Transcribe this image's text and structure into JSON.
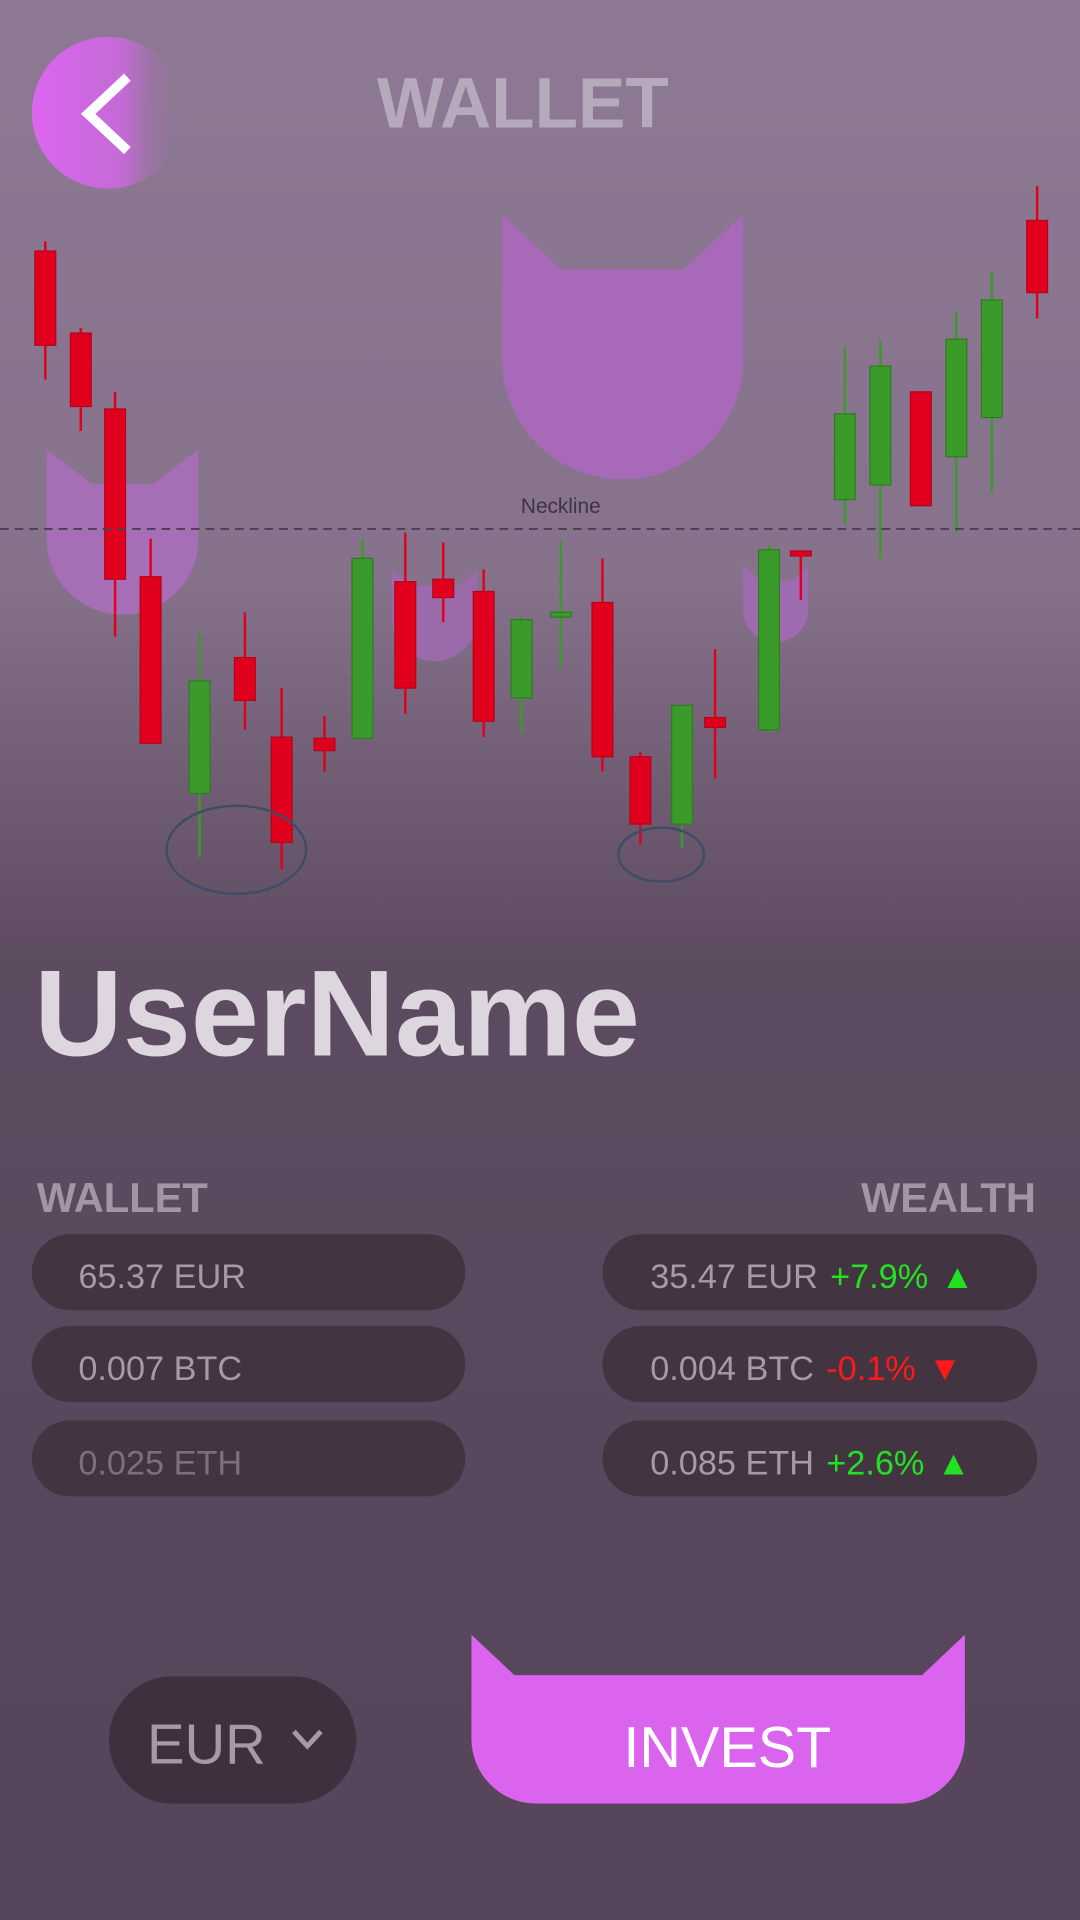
{
  "header": {
    "title": "WALLET"
  },
  "chart": {
    "annotation": "Neckline"
  },
  "user": {
    "name": "UserName"
  },
  "wallet": {
    "title": "WALLET",
    "rows": [
      "65.37 EUR",
      "0.007 BTC",
      "0.025 ETH"
    ]
  },
  "wealth": {
    "title": "WEALTH",
    "rows": [
      {
        "amount": "35.47 EUR",
        "change": "+7.9%",
        "arrow": "▲",
        "color": "#22e022"
      },
      {
        "amount": "0.004 BTC",
        "change": "-0.1%",
        "arrow": "▼",
        "color": "#ff1a1a"
      },
      {
        "amount": "0.085 ETH",
        "change": "+2.6%",
        "arrow": "▲",
        "color": "#22e022"
      }
    ]
  },
  "controls": {
    "currency": "EUR",
    "invest": "INVEST"
  }
}
